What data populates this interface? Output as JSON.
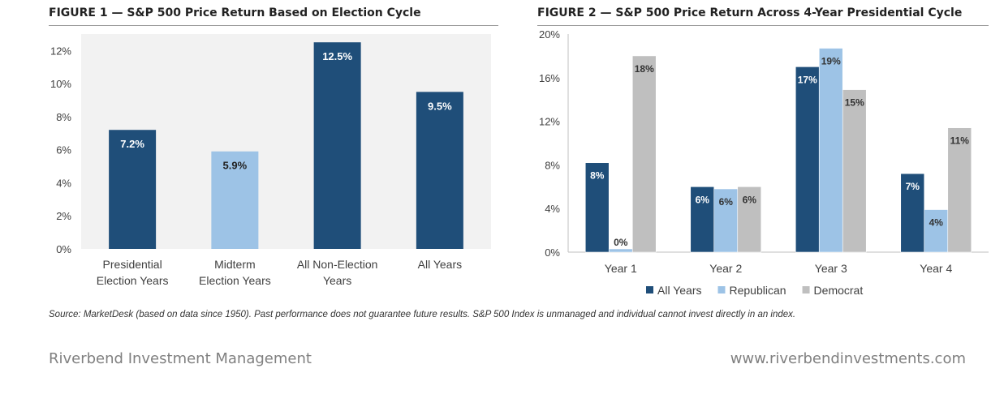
{
  "chart_data": [
    {
      "type": "bar",
      "title": "FIGURE 1 — S&P 500 Price Return Based on Election Cycle",
      "categories": [
        [
          "Presidential",
          "Election Years"
        ],
        [
          "Midterm",
          "Election Years"
        ],
        [
          "All Non-Election",
          "Years"
        ],
        [
          "All Years"
        ]
      ],
      "values": [
        7.2,
        5.9,
        12.5,
        9.5
      ],
      "data_labels": [
        "7.2%",
        "5.9%",
        "12.5%",
        "9.5%"
      ],
      "bar_colors": [
        "#1f4e79",
        "#9dc3e6",
        "#1f4e79",
        "#1f4e79"
      ],
      "y_ticks": [
        "0%",
        "2%",
        "4%",
        "6%",
        "8%",
        "10%",
        "12%"
      ],
      "ylim": [
        0,
        13
      ],
      "grid": false
    },
    {
      "type": "bar",
      "title": "FIGURE 2 — S&P 500 Price Return Across 4-Year Presidential Cycle",
      "categories": [
        "Year 1",
        "Year 2",
        "Year 3",
        "Year 4"
      ],
      "series": [
        {
          "name": "All Years",
          "color": "#1f4e79",
          "values": [
            8.2,
            6.0,
            17.0,
            7.2
          ],
          "labels": [
            "8%",
            "6%",
            "17%",
            "7%"
          ]
        },
        {
          "name": "Republican",
          "color": "#9dc3e6",
          "values": [
            0.3,
            5.8,
            18.7,
            3.9
          ],
          "labels": [
            "0%",
            "6%",
            "19%",
            "4%"
          ]
        },
        {
          "name": "Democrat",
          "color": "#bfbfbf",
          "values": [
            18.0,
            6.0,
            14.9,
            11.4
          ],
          "labels": [
            "18%",
            "6%",
            "15%",
            "11%"
          ]
        }
      ],
      "y_ticks": [
        "0%",
        "4%",
        "8%",
        "12%",
        "16%",
        "20%"
      ],
      "ylim": [
        0,
        20
      ],
      "legend": "bottom",
      "grid": false
    }
  ],
  "source_note": "Source: MarketDesk (based on data since 1950). Past performance does not guarantee future results. S&P 500 Index is unmanaged and individual cannot invest directly in an index.",
  "footer": {
    "company": "Riverbend Investment Management",
    "website": "www.riverbendinvestments.com"
  }
}
